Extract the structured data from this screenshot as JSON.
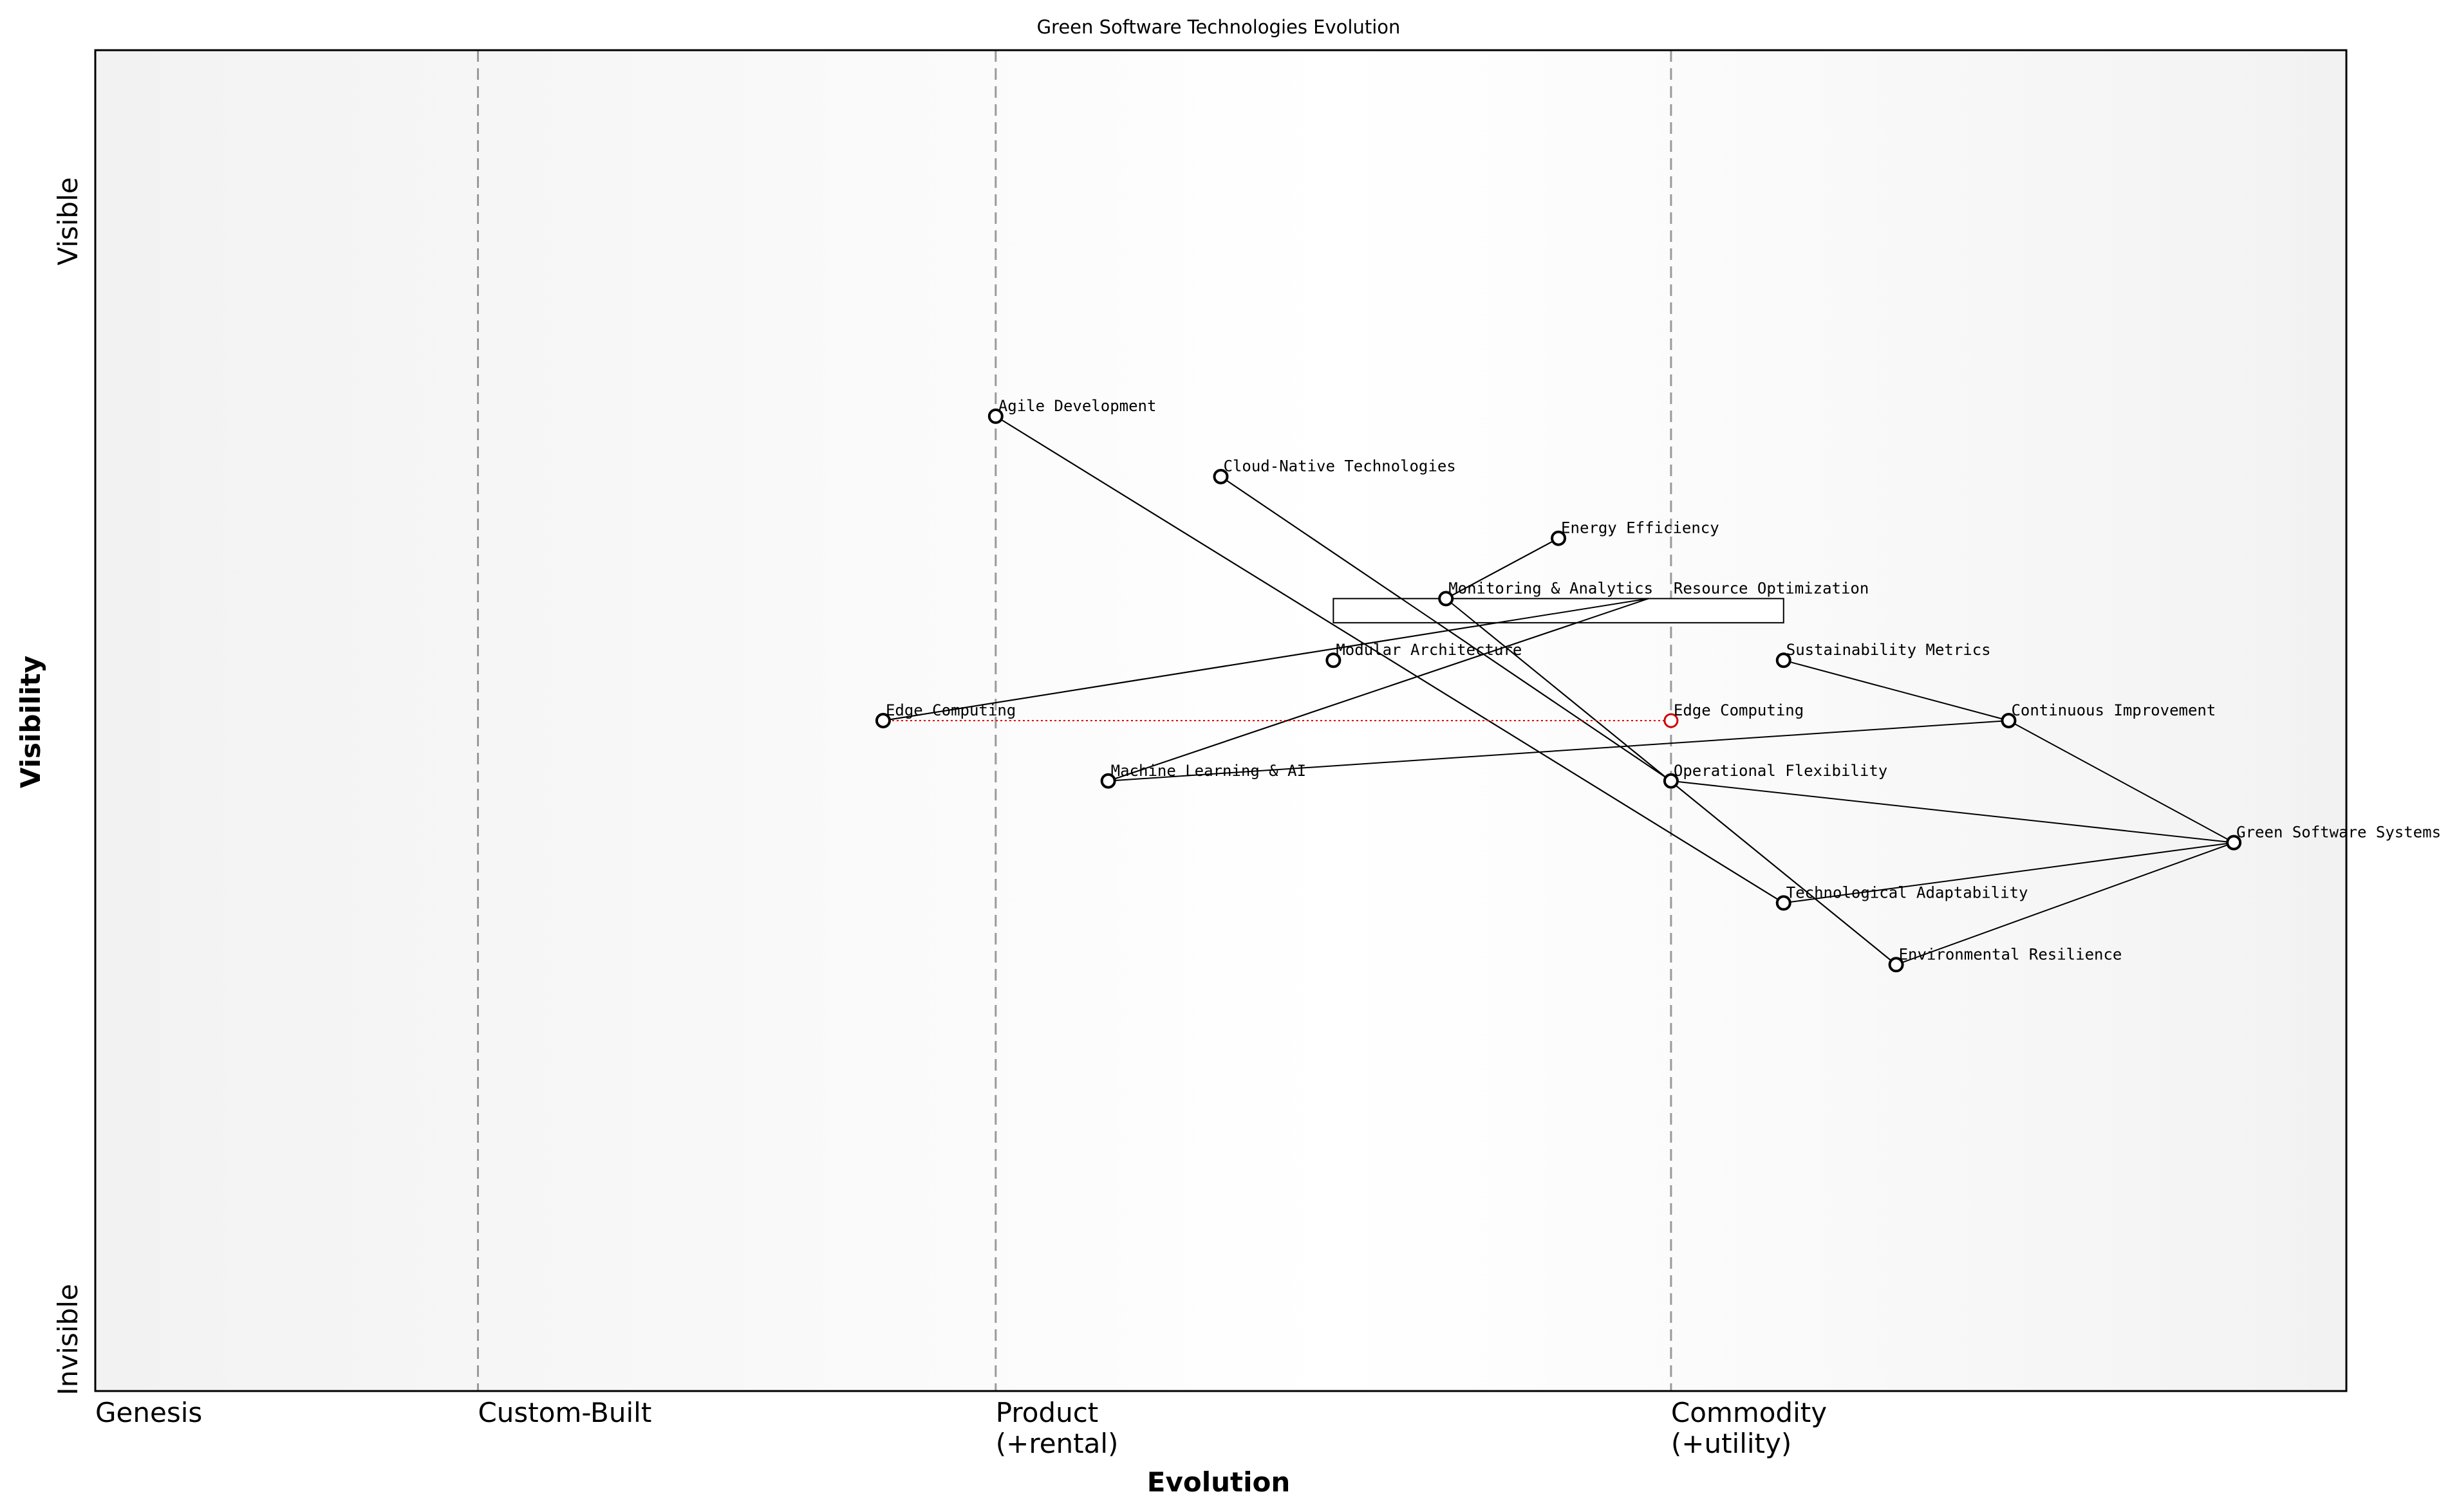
{
  "chart_data": {
    "type": "wardley_map",
    "title": "Green Software Technologies Evolution",
    "xlabel": "Evolution",
    "ylabel": "Visibility",
    "xlim": [
      0,
      1
    ],
    "ylim": [
      0,
      1
    ],
    "y_extremes": {
      "top": "Visible",
      "bottom": "Invisible"
    },
    "stages": [
      {
        "label": "Genesis",
        "x": 0.0
      },
      {
        "label": "Custom-Built",
        "x": 0.17
      },
      {
        "label": "Product\n(+rental)",
        "x": 0.4
      },
      {
        "label": "Commodity\n(+utility)",
        "x": 0.7
      }
    ],
    "stage_dividers": [
      0.17,
      0.4,
      0.7
    ],
    "components": [
      {
        "id": "agile",
        "label": "Agile Development",
        "x": 0.4,
        "y": 0.727
      },
      {
        "id": "cloud",
        "label": "Cloud-Native Technologies",
        "x": 0.5,
        "y": 0.682
      },
      {
        "id": "energy",
        "label": "Energy Efficiency",
        "x": 0.65,
        "y": 0.636
      },
      {
        "id": "monitoring",
        "label": "Monitoring & Analytics",
        "x": 0.6,
        "y": 0.591
      },
      {
        "id": "modular",
        "label": "Modular Architecture",
        "x": 0.55,
        "y": 0.545
      },
      {
        "id": "sustain",
        "label": "Sustainability Metrics",
        "x": 0.75,
        "y": 0.545
      },
      {
        "id": "edge",
        "label": "Edge Computing",
        "x": 0.35,
        "y": 0.5
      },
      {
        "id": "continuous",
        "label": "Continuous Improvement",
        "x": 0.85,
        "y": 0.5
      },
      {
        "id": "ml",
        "label": "Machine Learning & AI",
        "x": 0.45,
        "y": 0.455
      },
      {
        "id": "opflex",
        "label": "Operational Flexibility",
        "x": 0.7,
        "y": 0.455
      },
      {
        "id": "green",
        "label": "Green Software Systems",
        "x": 0.95,
        "y": 0.409
      },
      {
        "id": "techadapt",
        "label": "Technological Adaptability",
        "x": 0.75,
        "y": 0.364
      },
      {
        "id": "envres",
        "label": "Environmental Resilience",
        "x": 0.8,
        "y": 0.318
      }
    ],
    "links": [
      [
        "agile",
        "techadapt"
      ],
      [
        "cloud",
        "opflex"
      ],
      [
        "energy",
        "monitoring"
      ],
      [
        "monitoring",
        "envres"
      ],
      [
        "edge",
        "resopt"
      ],
      [
        "ml",
        "resopt"
      ],
      [
        "ml",
        "continuous"
      ],
      [
        "sustain",
        "continuous"
      ],
      [
        "continuous",
        "green"
      ],
      [
        "opflex",
        "green"
      ],
      [
        "techadapt",
        "green"
      ],
      [
        "envres",
        "green"
      ]
    ],
    "annotation_box": {
      "label": "Resource Optimization",
      "x": [
        0.55,
        0.75
      ],
      "y": [
        0.573,
        0.591
      ]
    },
    "evolve": {
      "label": "Edge Computing",
      "from_x": 0.35,
      "to_x": 0.7,
      "y": 0.5,
      "color": "#d40000"
    },
    "grid": false,
    "background": "stage gradient light gray"
  }
}
